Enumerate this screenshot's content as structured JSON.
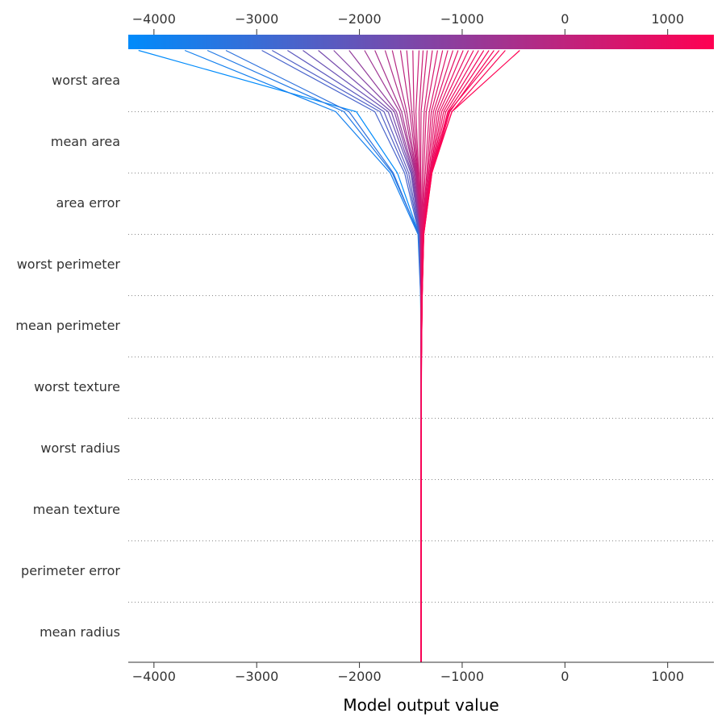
{
  "chart_data": {
    "type": "line",
    "title": "",
    "xlabel": "Model output value",
    "ylabel": "",
    "xlim": [
      -4250,
      1450
    ],
    "x_ticks": [
      -4000,
      -3000,
      -2000,
      -1000,
      0,
      1000
    ],
    "x_tick_labels": [
      "−4000",
      "−3000",
      "−2000",
      "−1000",
      "0",
      "1000"
    ],
    "base_value": -1400,
    "features": [
      "worst area",
      "mean area",
      "area error",
      "worst perimeter",
      "mean perimeter",
      "worst texture",
      "worst radius",
      "mean texture",
      "perimeter error",
      "mean radius"
    ],
    "colorscale": [
      "#008bfb",
      "#ff0052"
    ],
    "grid": "dotted horizontal lines between features",
    "colorbar": "top",
    "series": [
      {
        "values": [
          -4150,
          -2030,
          -1630,
          -1420,
          -1400,
          -1398,
          -1397,
          -1397,
          -1398,
          -1400
        ]
      },
      {
        "values": [
          -3700,
          -2230,
          -1700,
          -1430,
          -1405,
          -1400,
          -1398,
          -1398,
          -1399,
          -1400
        ]
      },
      {
        "values": [
          -3480,
          -2150,
          -1680,
          -1420,
          -1402,
          -1399,
          -1398,
          -1398,
          -1399,
          -1400
        ]
      },
      {
        "values": [
          -3300,
          -2100,
          -1670,
          -1425,
          -1404,
          -1400,
          -1398,
          -1398,
          -1399,
          -1400
        ]
      },
      {
        "values": [
          -2950,
          -1850,
          -1560,
          -1420,
          -1404,
          -1400,
          -1399,
          -1399,
          -1399,
          -1400
        ]
      },
      {
        "values": [
          -2850,
          -1800,
          -1540,
          -1415,
          -1403,
          -1400,
          -1399,
          -1399,
          -1399,
          -1400
        ]
      },
      {
        "values": [
          -2700,
          -1760,
          -1520,
          -1412,
          -1402,
          -1400,
          -1399,
          -1399,
          -1399,
          -1400
        ]
      },
      {
        "values": [
          -2550,
          -1720,
          -1500,
          -1410,
          -1402,
          -1400,
          -1399,
          -1399,
          -1399,
          -1400
        ]
      },
      {
        "values": [
          -2400,
          -1690,
          -1490,
          -1408,
          -1401,
          -1400,
          -1399,
          -1399,
          -1399,
          -1400
        ]
      },
      {
        "values": [
          -2250,
          -1660,
          -1480,
          -1407,
          -1401,
          -1400,
          -1399,
          -1399,
          -1400,
          -1400
        ]
      },
      {
        "values": [
          -2100,
          -1640,
          -1470,
          -1406,
          -1401,
          -1400,
          -1399,
          -1399,
          -1400,
          -1400
        ]
      },
      {
        "values": [
          -1950,
          -1610,
          -1460,
          -1405,
          -1400,
          -1400,
          -1399,
          -1399,
          -1400,
          -1400
        ]
      },
      {
        "values": [
          -1850,
          -1590,
          -1455,
          -1404,
          -1400,
          -1400,
          -1399,
          -1399,
          -1400,
          -1400
        ]
      },
      {
        "values": [
          -1750,
          -1560,
          -1450,
          -1403,
          -1400,
          -1400,
          -1400,
          -1400,
          -1400,
          -1400
        ]
      },
      {
        "values": [
          -1680,
          -1540,
          -1445,
          -1402,
          -1400,
          -1400,
          -1400,
          -1400,
          -1400,
          -1400
        ]
      },
      {
        "values": [
          -1600,
          -1510,
          -1440,
          -1401,
          -1400,
          -1400,
          -1400,
          -1400,
          -1400,
          -1400
        ]
      },
      {
        "values": [
          -1540,
          -1490,
          -1435,
          -1401,
          -1400,
          -1400,
          -1400,
          -1400,
          -1400,
          -1400
        ]
      },
      {
        "values": [
          -1480,
          -1470,
          -1430,
          -1400,
          -1400,
          -1400,
          -1400,
          -1400,
          -1400,
          -1400
        ]
      },
      {
        "values": [
          -1420,
          -1450,
          -1425,
          -1400,
          -1400,
          -1400,
          -1400,
          -1400,
          -1400,
          -1400
        ]
      },
      {
        "values": [
          -1380,
          -1420,
          -1415,
          -1399,
          -1399,
          -1400,
          -1400,
          -1400,
          -1400,
          -1400
        ]
      },
      {
        "values": [
          -1340,
          -1400,
          -1405,
          -1398,
          -1399,
          -1400,
          -1400,
          -1400,
          -1400,
          -1400
        ]
      },
      {
        "values": [
          -1290,
          -1370,
          -1390,
          -1396,
          -1398,
          -1399,
          -1400,
          -1400,
          -1400,
          -1400
        ]
      },
      {
        "values": [
          -1240,
          -1350,
          -1375,
          -1394,
          -1398,
          -1399,
          -1400,
          -1400,
          -1400,
          -1400
        ]
      },
      {
        "values": [
          -1190,
          -1320,
          -1360,
          -1392,
          -1397,
          -1399,
          -1399,
          -1400,
          -1400,
          -1400
        ]
      },
      {
        "values": [
          -1140,
          -1300,
          -1345,
          -1390,
          -1396,
          -1398,
          -1399,
          -1400,
          -1400,
          -1400
        ]
      },
      {
        "values": [
          -1090,
          -1280,
          -1335,
          -1388,
          -1395,
          -1398,
          -1399,
          -1400,
          -1400,
          -1400
        ]
      },
      {
        "values": [
          -1040,
          -1260,
          -1325,
          -1386,
          -1394,
          -1398,
          -1399,
          -1400,
          -1400,
          -1400
        ]
      },
      {
        "values": [
          -990,
          -1240,
          -1315,
          -1384,
          -1393,
          -1397,
          -1399,
          -1400,
          -1400,
          -1400
        ]
      },
      {
        "values": [
          -940,
          -1220,
          -1310,
          -1382,
          -1392,
          -1397,
          -1399,
          -1400,
          -1400,
          -1400
        ]
      },
      {
        "values": [
          -890,
          -1200,
          -1305,
          -1380,
          -1391,
          -1397,
          -1399,
          -1400,
          -1400,
          -1400
        ]
      },
      {
        "values": [
          -840,
          -1180,
          -1300,
          -1378,
          -1390,
          -1396,
          -1399,
          -1400,
          -1400,
          -1400
        ]
      },
      {
        "values": [
          -790,
          -1160,
          -1298,
          -1376,
          -1389,
          -1396,
          -1399,
          -1399,
          -1400,
          -1400
        ]
      },
      {
        "values": [
          -740,
          -1140,
          -1296,
          -1374,
          -1389,
          -1396,
          -1398,
          -1399,
          -1400,
          -1400
        ]
      },
      {
        "values": [
          -690,
          -1120,
          -1294,
          -1373,
          -1388,
          -1396,
          -1398,
          -1399,
          -1400,
          -1400
        ]
      },
      {
        "values": [
          -640,
          -1130,
          -1300,
          -1375,
          -1390,
          -1397,
          -1399,
          -1400,
          -1400,
          -1400
        ]
      },
      {
        "values": [
          -580,
          -1100,
          -1300,
          -1376,
          -1391,
          -1397,
          -1399,
          -1400,
          -1400,
          -1400
        ]
      },
      {
        "values": [
          -440,
          -1100,
          -1295,
          -1375,
          -1390,
          -1397,
          -1399,
          -1400,
          -1400,
          -1400
        ]
      }
    ]
  }
}
